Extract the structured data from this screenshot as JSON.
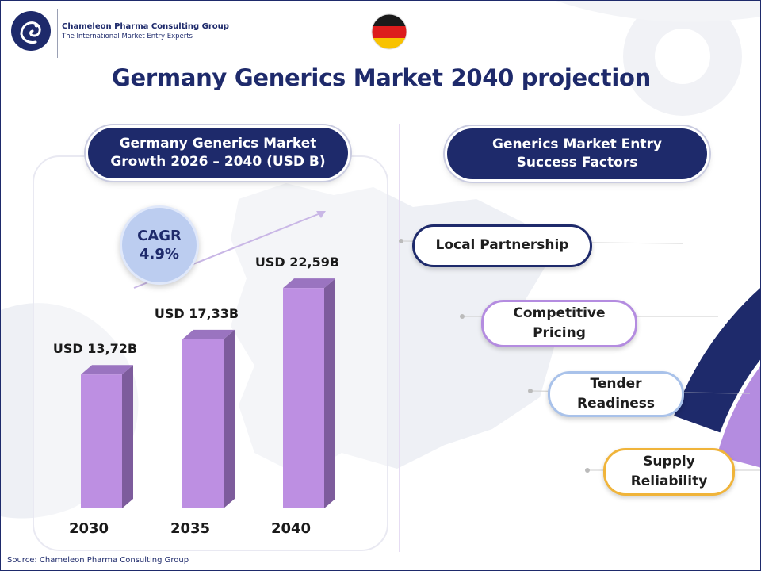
{
  "brand": {
    "name": "Chameleon Pharma Consulting Group",
    "tagline": "The International Market Entry Experts"
  },
  "page_title": "Germany Generics Market 2040 projection",
  "left_pill": {
    "line1": "Germany Generics Market",
    "line2": "Growth 2026 – 2040 (USD B)"
  },
  "cagr": {
    "label": "CAGR",
    "value": "4.9%"
  },
  "right_pill": {
    "line1": "Generics Market Entry",
    "line2": "Success Factors"
  },
  "factors": [
    {
      "line1": "Local Partnership",
      "line2": "",
      "color": "#1e2a6b"
    },
    {
      "line1": "Competitive",
      "line2": "Pricing",
      "color": "#b48ce0"
    },
    {
      "line1": "Tender",
      "line2": "Readiness",
      "color": "#a9c2ea"
    },
    {
      "line1": "Supply",
      "line2": "Reliability",
      "color": "#f0b43a"
    }
  ],
  "source": "Source: Chameleon Pharma Consulting Group",
  "colors": {
    "navy": "#1e2a6b",
    "bar_front": "#bd8fe2",
    "bar_side": "#7d5c9c",
    "bar_top": "#9a74c0"
  },
  "chart_data": {
    "type": "bar",
    "title": "Germany Generics Market Growth 2026 – 2040 (USD B)",
    "categories": [
      "2030",
      "2035",
      "2040"
    ],
    "values": [
      13.72,
      17.33,
      22.59
    ],
    "data_labels": [
      "USD 13,72B",
      "USD 17,33B",
      "USD 22,59B"
    ],
    "ylim": [
      0,
      25
    ],
    "grid": false,
    "legend": "none"
  }
}
